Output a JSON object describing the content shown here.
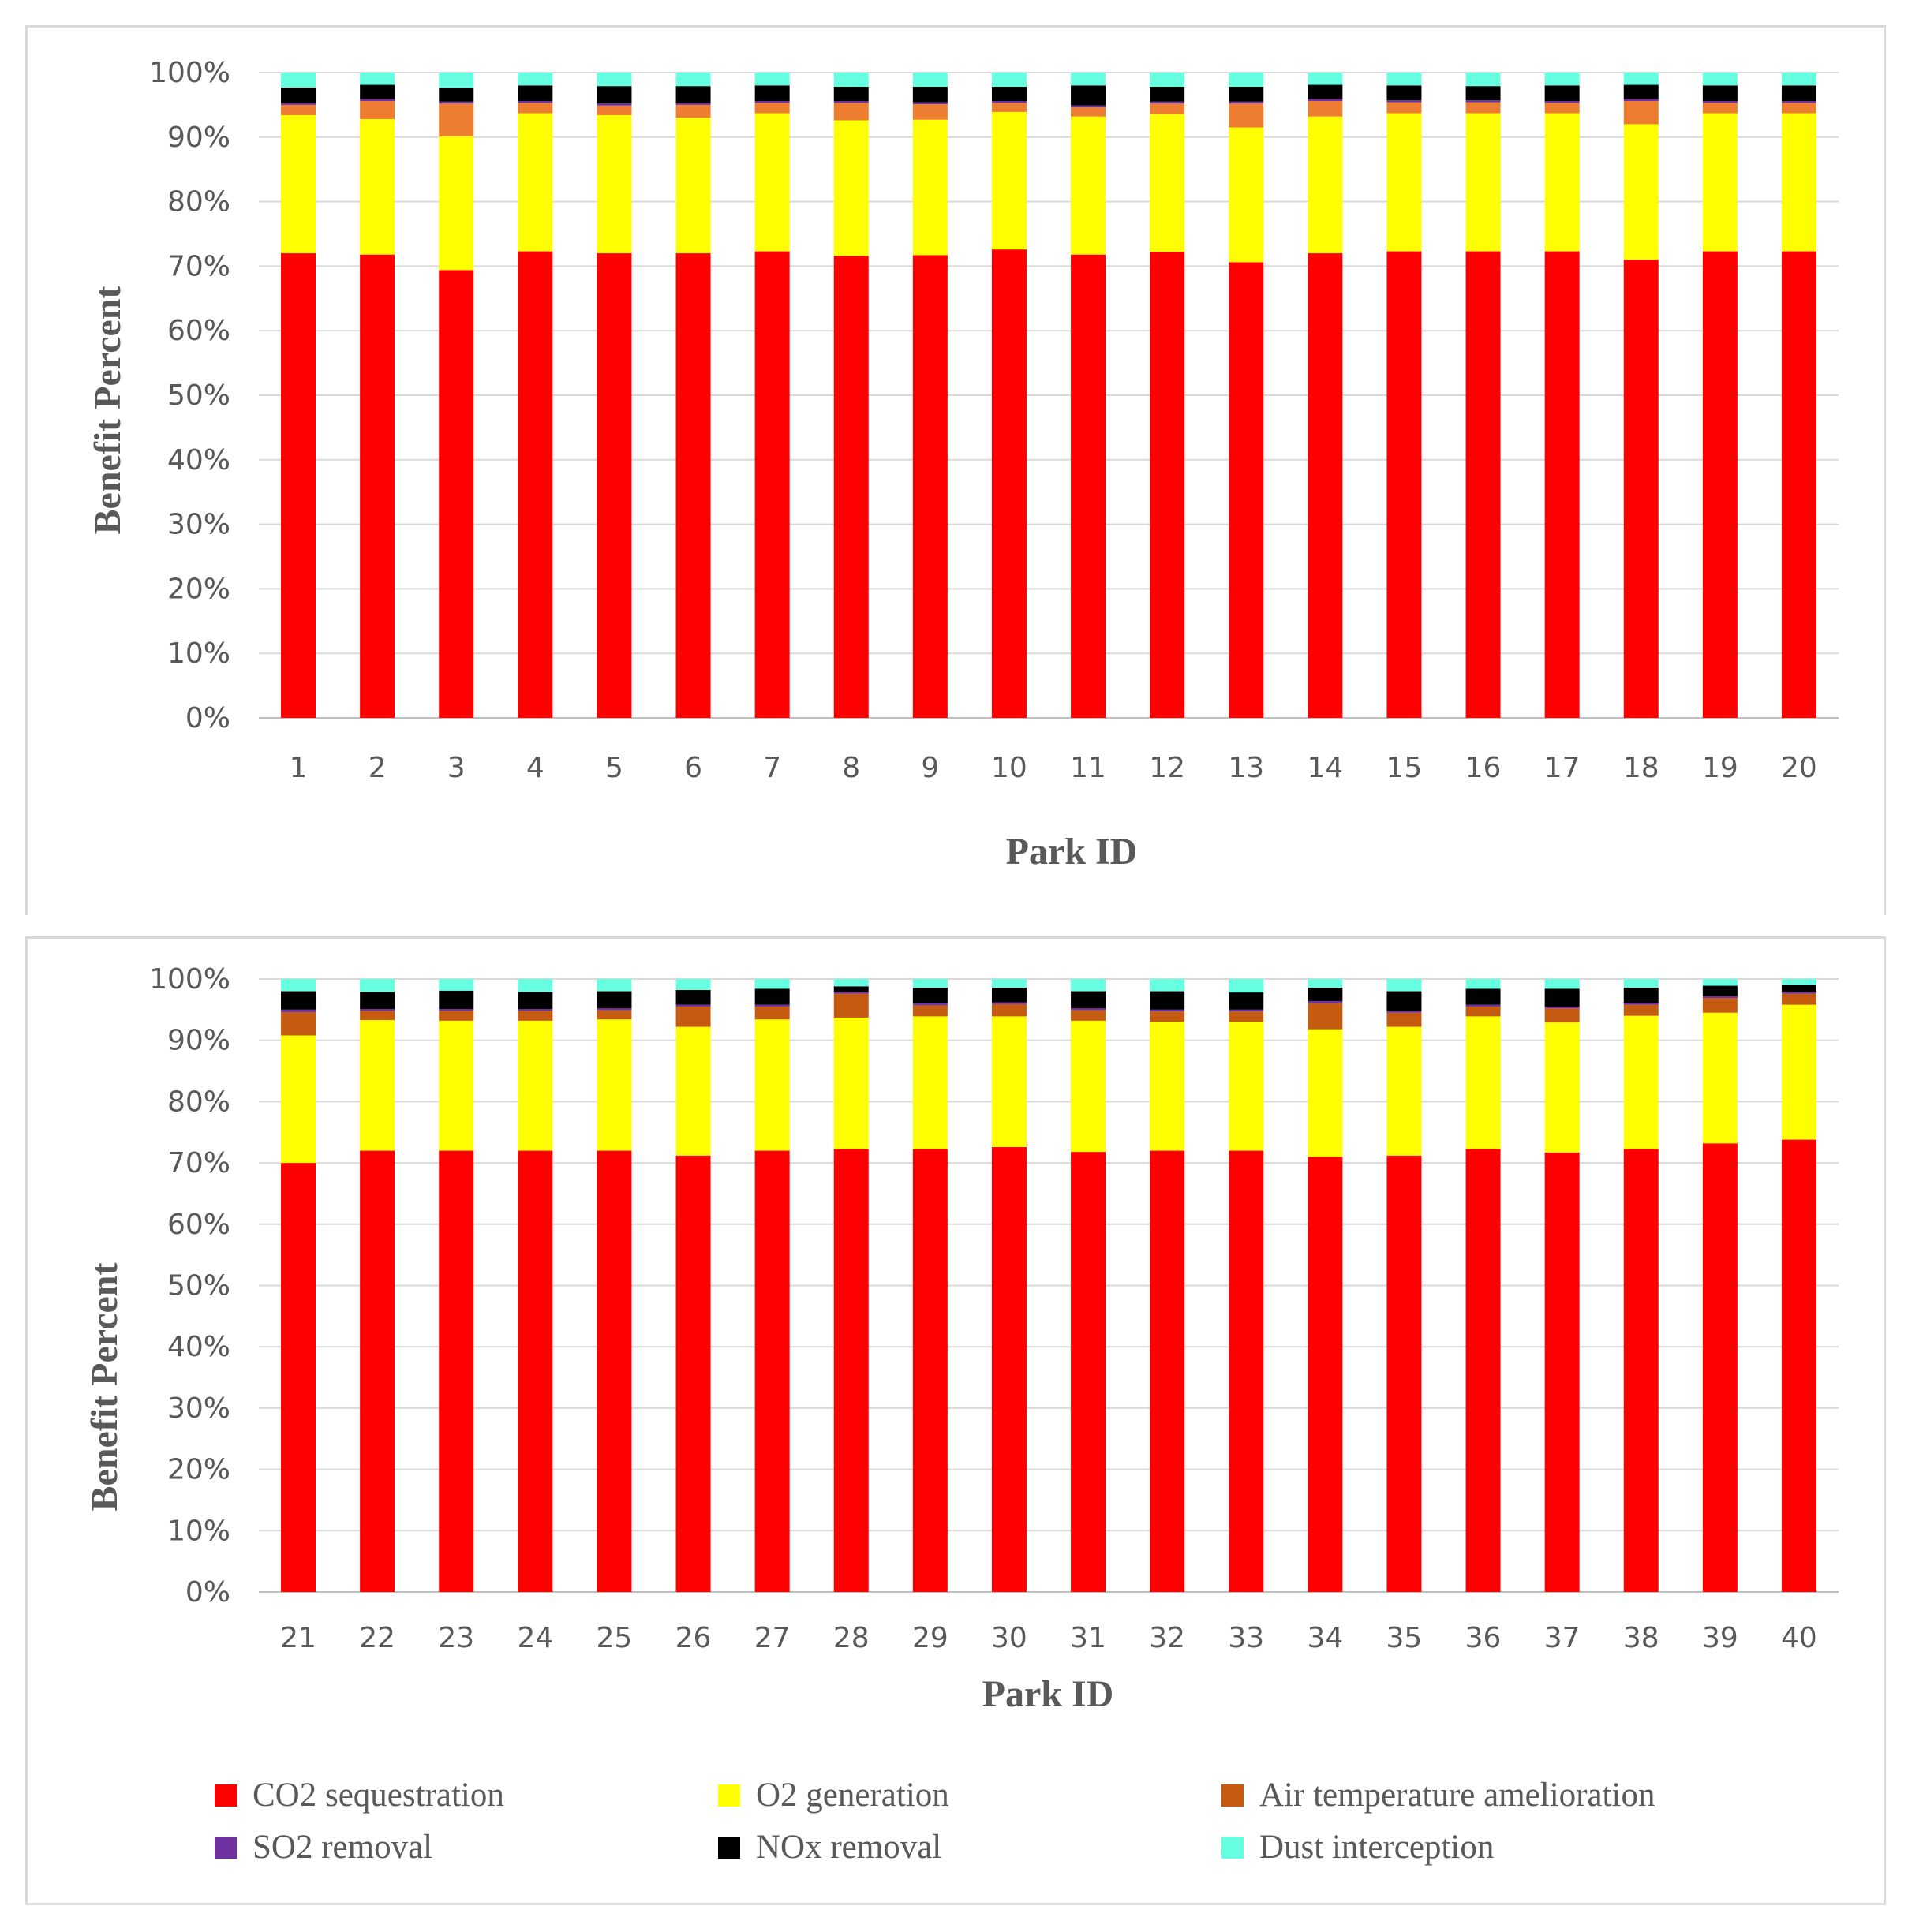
{
  "chart_data": [
    {
      "type": "bar",
      "stacked": "percent",
      "categories": [
        "1",
        "2",
        "3",
        "4",
        "5",
        "6",
        "7",
        "8",
        "9",
        "10",
        "11",
        "12",
        "13",
        "14",
        "15",
        "16",
        "17",
        "18",
        "19",
        "20"
      ],
      "xlabel": "Park ID",
      "ylabel": "Benefit Percent",
      "ylim": [
        0,
        100
      ],
      "y_ticks": [
        "0%",
        "10%",
        "20%",
        "30%",
        "40%",
        "50%",
        "60%",
        "70%",
        "80%",
        "90%",
        "100%"
      ],
      "grid": true,
      "series": [
        {
          "name": "CO2 sequestration",
          "color": "#ff0000",
          "values": [
            72.0,
            71.8,
            69.4,
            72.3,
            72.0,
            72.0,
            72.3,
            71.6,
            71.7,
            72.6,
            71.8,
            72.2,
            70.6,
            72.0,
            72.3,
            72.3,
            72.3,
            71.0,
            72.3,
            72.3
          ]
        },
        {
          "name": "O2 generation",
          "color": "#ffff00",
          "values": [
            21.4,
            21.0,
            20.7,
            21.4,
            21.4,
            21.0,
            21.4,
            21.0,
            21.0,
            21.3,
            21.4,
            21.4,
            20.9,
            21.2,
            21.4,
            21.4,
            21.4,
            21.0,
            21.4,
            21.4
          ]
        },
        {
          "name": "Air temperature amelioration",
          "color": "#ed7d31",
          "values": [
            1.6,
            2.8,
            5.1,
            1.6,
            1.5,
            2.0,
            1.6,
            2.7,
            2.4,
            1.4,
            1.4,
            1.6,
            3.7,
            2.4,
            1.7,
            1.7,
            1.6,
            3.6,
            1.6,
            1.6
          ]
        },
        {
          "name": "SO2 removal",
          "color": "#7030a0",
          "values": [
            0.3,
            0.3,
            0.3,
            0.3,
            0.3,
            0.3,
            0.3,
            0.3,
            0.3,
            0.3,
            0.3,
            0.3,
            0.3,
            0.3,
            0.3,
            0.3,
            0.3,
            0.3,
            0.3,
            0.3
          ]
        },
        {
          "name": "NOx removal",
          "color": "#000000",
          "values": [
            2.4,
            2.2,
            2.1,
            2.4,
            2.7,
            2.6,
            2.4,
            2.2,
            2.4,
            2.2,
            3.1,
            2.3,
            2.3,
            2.2,
            2.3,
            2.2,
            2.4,
            2.2,
            2.4,
            2.4
          ]
        },
        {
          "name": "Dust interception",
          "color": "#66ffe0",
          "values": [
            2.3,
            1.9,
            2.4,
            2.0,
            2.1,
            2.1,
            2.0,
            2.2,
            2.2,
            2.2,
            2.0,
            2.2,
            2.2,
            1.9,
            2.0,
            2.1,
            2.0,
            1.9,
            2.0,
            2.0
          ]
        }
      ]
    },
    {
      "type": "bar",
      "stacked": "percent",
      "categories": [
        "21",
        "22",
        "23",
        "24",
        "25",
        "26",
        "27",
        "28",
        "29",
        "30",
        "31",
        "32",
        "33",
        "34",
        "35",
        "36",
        "37",
        "38",
        "39",
        "40"
      ],
      "xlabel": "Park ID",
      "ylabel": "Benefit Percent",
      "ylim": [
        0,
        100
      ],
      "y_ticks": [
        "0%",
        "10%",
        "20%",
        "30%",
        "40%",
        "50%",
        "60%",
        "70%",
        "80%",
        "90%",
        "100%"
      ],
      "grid": true,
      "series": [
        {
          "name": "CO2 sequestration",
          "color": "#ff0000",
          "values": [
            70.0,
            72.0,
            72.0,
            72.0,
            72.0,
            71.2,
            72.0,
            72.3,
            72.3,
            72.6,
            71.8,
            72.0,
            72.0,
            71.0,
            71.2,
            72.3,
            71.7,
            72.3,
            73.2,
            73.8
          ]
        },
        {
          "name": "O2 generation",
          "color": "#ffff00",
          "values": [
            20.8,
            21.3,
            21.2,
            21.2,
            21.4,
            21.0,
            21.4,
            21.4,
            21.6,
            21.3,
            21.4,
            21.0,
            21.0,
            20.8,
            21.0,
            21.6,
            21.2,
            21.7,
            21.3,
            22.0
          ]
        },
        {
          "name": "Air temperature amelioration",
          "color": "#c55a11",
          "values": [
            3.8,
            1.5,
            1.6,
            1.6,
            1.5,
            3.3,
            2.1,
            3.9,
            1.8,
            2.0,
            1.7,
            1.7,
            1.7,
            4.2,
            2.3,
            1.6,
            2.3,
            1.8,
            2.4,
            1.8
          ]
        },
        {
          "name": "SO2 removal",
          "color": "#7030a0",
          "values": [
            0.4,
            0.3,
            0.3,
            0.3,
            0.3,
            0.3,
            0.3,
            0.3,
            0.3,
            0.3,
            0.3,
            0.3,
            0.3,
            0.4,
            0.3,
            0.3,
            0.3,
            0.3,
            0.3,
            0.3
          ]
        },
        {
          "name": "NOx removal",
          "color": "#000000",
          "values": [
            3.0,
            2.8,
            3.0,
            2.8,
            2.8,
            2.4,
            2.6,
            0.9,
            2.6,
            2.4,
            2.8,
            3.0,
            2.8,
            2.2,
            3.2,
            2.6,
            2.9,
            2.5,
            1.7,
            1.2
          ]
        },
        {
          "name": "Dust interception",
          "color": "#66ffe0",
          "values": [
            2.0,
            2.1,
            1.9,
            2.1,
            2.0,
            1.8,
            1.6,
            1.2,
            1.4,
            1.4,
            2.0,
            2.0,
            2.2,
            1.4,
            2.0,
            1.6,
            1.6,
            1.4,
            1.1,
            0.9
          ]
        }
      ]
    }
  ],
  "legend": {
    "placement": "bottom",
    "items": [
      {
        "label": "CO2 sequestration",
        "color": "#ff0000"
      },
      {
        "label": "O2 generation",
        "color": "#ffff00"
      },
      {
        "label": "Air temperature amelioration",
        "color": "#c55a11"
      },
      {
        "label": "SO2 removal",
        "color": "#7030a0"
      },
      {
        "label": "NOx removal",
        "color": "#000000"
      },
      {
        "label": "Dust interception",
        "color": "#66ffe0"
      }
    ]
  }
}
